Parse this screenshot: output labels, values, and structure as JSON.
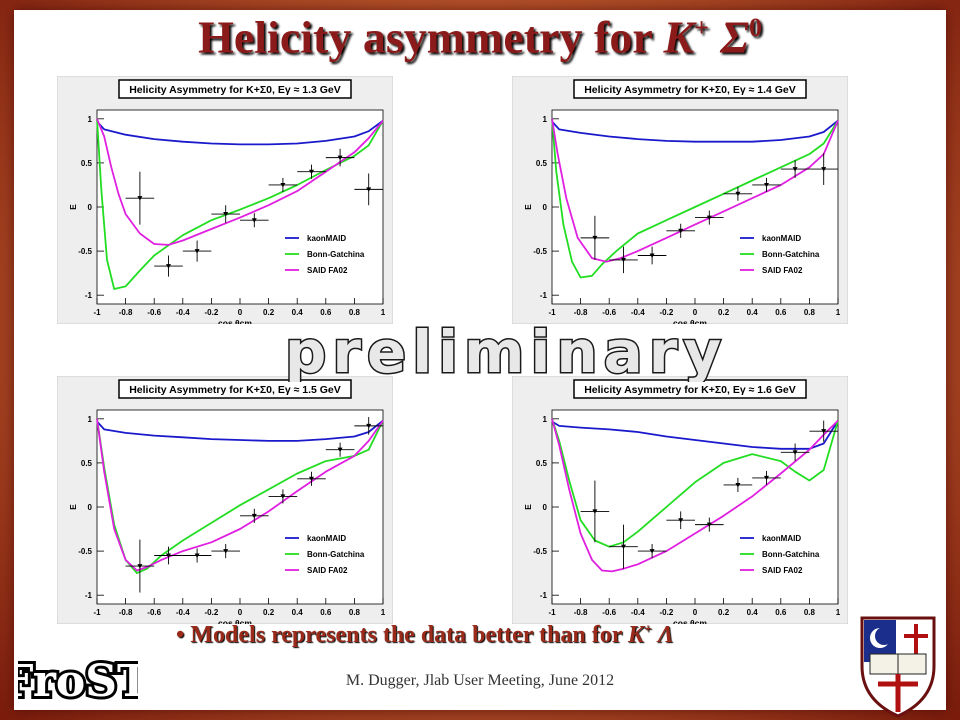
{
  "title": {
    "main": "Helicity asymmetry for ",
    "particle_k": "K",
    "k_sup": "+",
    "particle_s": "Σ",
    "s_sup": "0"
  },
  "watermark": "preliminary",
  "bullet": {
    "text": "• Models represents the data better than for ",
    "particle": "K",
    "sup": "+",
    "lambda": " Λ"
  },
  "footer": "M. Dugger, Jlab User Meeting, June 2012",
  "logo_text": "FroST",
  "colors": {
    "kaonMAID": "#1a1acc",
    "bonn": "#22dd22",
    "said": "#e020e0",
    "data": "#000000",
    "title_red": "#8b1a1a"
  },
  "chart_data": [
    {
      "type": "line",
      "title": "Helicity Asymmetry for K+Σ0, Eγ ≈ 1.3 GeV",
      "xlabel": "cos θcm",
      "ylabel": "E",
      "xlim": [
        -1,
        1
      ],
      "ylim": [
        -1.1,
        1.1
      ],
      "legend": [
        "kaonMAID",
        "Bonn-Gatchina",
        "SAID FA02"
      ],
      "legend_position": "bottom-right",
      "xticks": [
        "-1",
        "-0.8",
        "-0.6",
        "-0.4",
        "-0.2",
        "0",
        "0.2",
        "0.4",
        "0.6",
        "0.8",
        "1"
      ],
      "yticks": [
        "-1",
        "-0.5",
        "0",
        "0.5",
        "1"
      ],
      "series": [
        {
          "name": "kaonMAID",
          "x": [
            -1,
            -0.95,
            -0.8,
            -0.6,
            -0.4,
            -0.2,
            0,
            0.2,
            0.4,
            0.6,
            0.8,
            0.9,
            1
          ],
          "y": [
            0.97,
            0.88,
            0.82,
            0.77,
            0.74,
            0.72,
            0.71,
            0.71,
            0.72,
            0.75,
            0.8,
            0.86,
            0.98
          ]
        },
        {
          "name": "Bonn-Gatchina",
          "x": [
            -1,
            -0.97,
            -0.93,
            -0.88,
            -0.8,
            -0.7,
            -0.6,
            -0.4,
            -0.2,
            0,
            0.2,
            0.4,
            0.6,
            0.8,
            0.9,
            1
          ],
          "y": [
            1,
            0.2,
            -0.6,
            -0.93,
            -0.9,
            -0.72,
            -0.55,
            -0.32,
            -0.15,
            -0.03,
            0.1,
            0.25,
            0.42,
            0.58,
            0.7,
            0.98
          ]
        },
        {
          "name": "SAID FA02",
          "x": [
            -1,
            -0.95,
            -0.9,
            -0.85,
            -0.8,
            -0.7,
            -0.6,
            -0.5,
            -0.4,
            -0.2,
            0,
            0.2,
            0.4,
            0.6,
            0.8,
            0.9,
            1
          ],
          "y": [
            1,
            0.8,
            0.45,
            0.15,
            -0.08,
            -0.3,
            -0.42,
            -0.43,
            -0.38,
            -0.25,
            -0.12,
            0.02,
            0.18,
            0.4,
            0.62,
            0.78,
            0.98
          ]
        }
      ],
      "points": [
        {
          "x": -0.7,
          "y": 0.1,
          "ey": 0.3,
          "ex": 0.1
        },
        {
          "x": -0.5,
          "y": -0.67,
          "ey": 0.12,
          "ex": 0.1
        },
        {
          "x": -0.3,
          "y": -0.5,
          "ey": 0.12,
          "ex": 0.1
        },
        {
          "x": -0.1,
          "y": -0.08,
          "ey": 0.1,
          "ex": 0.1
        },
        {
          "x": 0.1,
          "y": -0.15,
          "ey": 0.08,
          "ex": 0.1
        },
        {
          "x": 0.3,
          "y": 0.25,
          "ey": 0.08,
          "ex": 0.1
        },
        {
          "x": 0.5,
          "y": 0.4,
          "ey": 0.08,
          "ex": 0.1
        },
        {
          "x": 0.7,
          "y": 0.56,
          "ey": 0.1,
          "ex": 0.1
        },
        {
          "x": 0.9,
          "y": 0.2,
          "ey": 0.18,
          "ex": 0.1
        }
      ]
    },
    {
      "type": "line",
      "title": "Helicity Asymmetry for K+Σ0, Eγ ≈ 1.4 GeV",
      "xlabel": "cos θcm",
      "ylabel": "E",
      "xlim": [
        -1,
        1
      ],
      "ylim": [
        -1.1,
        1.1
      ],
      "legend": [
        "kaonMAID",
        "Bonn-Gatchina",
        "SAID FA02"
      ],
      "legend_position": "bottom-right",
      "xticks": [
        "-1",
        "-0.8",
        "-0.6",
        "-0.4",
        "-0.2",
        "0",
        "0.2",
        "0.4",
        "0.6",
        "0.8",
        "1"
      ],
      "yticks": [
        "-1",
        "-0.5",
        "0",
        "0.5",
        "1"
      ],
      "series": [
        {
          "name": "kaonMAID",
          "x": [
            -1,
            -0.95,
            -0.8,
            -0.6,
            -0.4,
            -0.2,
            0,
            0.2,
            0.4,
            0.6,
            0.8,
            0.9,
            1
          ],
          "y": [
            0.97,
            0.88,
            0.84,
            0.8,
            0.77,
            0.75,
            0.74,
            0.74,
            0.74,
            0.76,
            0.8,
            0.85,
            0.98
          ]
        },
        {
          "name": "Bonn-Gatchina",
          "x": [
            -1,
            -0.97,
            -0.92,
            -0.86,
            -0.8,
            -0.72,
            -0.65,
            -0.55,
            -0.4,
            -0.2,
            0,
            0.2,
            0.4,
            0.6,
            0.8,
            0.9,
            1
          ],
          "y": [
            1,
            0.4,
            -0.2,
            -0.62,
            -0.8,
            -0.78,
            -0.65,
            -0.5,
            -0.3,
            -0.15,
            0,
            0.15,
            0.3,
            0.45,
            0.6,
            0.72,
            0.98
          ]
        },
        {
          "name": "SAID FA02",
          "x": [
            -1,
            -0.96,
            -0.9,
            -0.82,
            -0.72,
            -0.62,
            -0.52,
            -0.4,
            -0.2,
            0,
            0.2,
            0.4,
            0.6,
            0.8,
            0.9,
            1
          ],
          "y": [
            1,
            0.6,
            0.1,
            -0.35,
            -0.58,
            -0.62,
            -0.58,
            -0.5,
            -0.35,
            -0.2,
            -0.05,
            0.1,
            0.25,
            0.45,
            0.6,
            0.98
          ]
        }
      ],
      "points": [
        {
          "x": -0.7,
          "y": -0.35,
          "ey": 0.25,
          "ex": 0.1
        },
        {
          "x": -0.5,
          "y": -0.6,
          "ey": 0.15,
          "ex": 0.1
        },
        {
          "x": -0.3,
          "y": -0.55,
          "ey": 0.1,
          "ex": 0.1
        },
        {
          "x": -0.1,
          "y": -0.27,
          "ey": 0.08,
          "ex": 0.1
        },
        {
          "x": 0.1,
          "y": -0.12,
          "ey": 0.08,
          "ex": 0.1
        },
        {
          "x": 0.3,
          "y": 0.15,
          "ey": 0.08,
          "ex": 0.1
        },
        {
          "x": 0.5,
          "y": 0.25,
          "ey": 0.08,
          "ex": 0.1
        },
        {
          "x": 0.7,
          "y": 0.43,
          "ey": 0.1,
          "ex": 0.1
        },
        {
          "x": 0.9,
          "y": 0.43,
          "ey": 0.18,
          "ex": 0.1
        }
      ]
    },
    {
      "type": "line",
      "title": "Helicity Asymmetry for K+Σ0, Eγ ≈ 1.5 GeV",
      "xlabel": "cos θcm",
      "ylabel": "E",
      "xlim": [
        -1,
        1
      ],
      "ylim": [
        -1.1,
        1.1
      ],
      "legend": [
        "kaonMAID",
        "Bonn-Gatchina",
        "SAID FA02"
      ],
      "legend_position": "bottom-right",
      "xticks": [
        "-1",
        "-0.8",
        "-0.6",
        "-0.4",
        "-0.2",
        "0",
        "0.2",
        "0.4",
        "0.6",
        "0.8",
        "1"
      ],
      "yticks": [
        "-1",
        "-0.5",
        "0",
        "0.5",
        "1"
      ],
      "series": [
        {
          "name": "kaonMAID",
          "x": [
            -1,
            -0.95,
            -0.8,
            -0.6,
            -0.4,
            -0.2,
            0,
            0.2,
            0.4,
            0.6,
            0.8,
            0.9,
            1
          ],
          "y": [
            0.97,
            0.88,
            0.84,
            0.81,
            0.79,
            0.77,
            0.76,
            0.75,
            0.75,
            0.77,
            0.8,
            0.85,
            0.98
          ]
        },
        {
          "name": "Bonn-Gatchina",
          "x": [
            -1,
            -0.95,
            -0.88,
            -0.8,
            -0.72,
            -0.65,
            -0.55,
            -0.4,
            -0.2,
            0,
            0.2,
            0.4,
            0.6,
            0.8,
            0.9,
            1
          ],
          "y": [
            1,
            0.45,
            -0.2,
            -0.6,
            -0.75,
            -0.7,
            -0.55,
            -0.38,
            -0.18,
            0.02,
            0.2,
            0.38,
            0.52,
            0.58,
            0.65,
            0.98
          ]
        },
        {
          "name": "SAID FA02",
          "x": [
            -1,
            -0.95,
            -0.88,
            -0.8,
            -0.72,
            -0.65,
            -0.55,
            -0.4,
            -0.2,
            0,
            0.2,
            0.4,
            0.6,
            0.8,
            0.9,
            1
          ],
          "y": [
            1,
            0.4,
            -0.25,
            -0.6,
            -0.72,
            -0.68,
            -0.6,
            -0.5,
            -0.4,
            -0.25,
            -0.05,
            0.18,
            0.4,
            0.58,
            0.75,
            0.98
          ]
        }
      ],
      "points": [
        {
          "x": -0.7,
          "y": -0.67,
          "ey": 0.3,
          "ex": 0.1
        },
        {
          "x": -0.5,
          "y": -0.55,
          "ey": 0.1,
          "ex": 0.1
        },
        {
          "x": -0.3,
          "y": -0.55,
          "ey": 0.08,
          "ex": 0.1
        },
        {
          "x": -0.1,
          "y": -0.5,
          "ey": 0.08,
          "ex": 0.1
        },
        {
          "x": 0.1,
          "y": -0.1,
          "ey": 0.08,
          "ex": 0.1
        },
        {
          "x": 0.3,
          "y": 0.12,
          "ey": 0.08,
          "ex": 0.1
        },
        {
          "x": 0.5,
          "y": 0.32,
          "ey": 0.08,
          "ex": 0.1
        },
        {
          "x": 0.7,
          "y": 0.65,
          "ey": 0.08,
          "ex": 0.1
        },
        {
          "x": 0.9,
          "y": 0.92,
          "ey": 0.1,
          "ex": 0.1
        }
      ]
    },
    {
      "type": "line",
      "title": "Helicity Asymmetry for K+Σ0, Eγ ≈ 1.6 GeV",
      "xlabel": "cos θcm",
      "ylabel": "E",
      "xlim": [
        -1,
        1
      ],
      "ylim": [
        -1.1,
        1.1
      ],
      "legend": [
        "kaonMAID",
        "Bonn-Gatchina",
        "SAID FA02"
      ],
      "legend_position": "bottom-right",
      "xticks": [
        "-1",
        "-0.8",
        "-0.6",
        "-0.4",
        "-0.2",
        "0",
        "0.2",
        "0.4",
        "0.6",
        "0.8",
        "1"
      ],
      "yticks": [
        "-1",
        "-0.5",
        "0",
        "0.5",
        "1"
      ],
      "series": [
        {
          "name": "kaonMAID",
          "x": [
            -1,
            -0.95,
            -0.8,
            -0.6,
            -0.4,
            -0.2,
            0,
            0.2,
            0.4,
            0.6,
            0.8,
            0.9,
            1
          ],
          "y": [
            0.97,
            0.92,
            0.9,
            0.88,
            0.85,
            0.8,
            0.76,
            0.72,
            0.68,
            0.66,
            0.66,
            0.72,
            0.98
          ]
        },
        {
          "name": "Bonn-Gatchina",
          "x": [
            -1,
            -0.95,
            -0.88,
            -0.8,
            -0.7,
            -0.6,
            -0.5,
            -0.4,
            -0.2,
            0,
            0.2,
            0.4,
            0.6,
            0.7,
            0.8,
            0.9,
            1
          ],
          "y": [
            1,
            0.75,
            0.3,
            -0.15,
            -0.38,
            -0.45,
            -0.4,
            -0.28,
            0,
            0.28,
            0.5,
            0.6,
            0.52,
            0.4,
            0.3,
            0.42,
            0.98
          ]
        },
        {
          "name": "SAID FA02",
          "x": [
            -1,
            -0.95,
            -0.88,
            -0.8,
            -0.72,
            -0.65,
            -0.58,
            -0.5,
            -0.4,
            -0.2,
            0,
            0.2,
            0.4,
            0.6,
            0.8,
            0.9,
            1
          ],
          "y": [
            1,
            0.7,
            0.2,
            -0.3,
            -0.6,
            -0.72,
            -0.73,
            -0.7,
            -0.65,
            -0.5,
            -0.3,
            -0.1,
            0.12,
            0.38,
            0.65,
            0.82,
            0.98
          ]
        }
      ],
      "points": [
        {
          "x": -0.7,
          "y": -0.05,
          "ey": 0.35,
          "ex": 0.1
        },
        {
          "x": -0.5,
          "y": -0.45,
          "ey": 0.25,
          "ex": 0.1
        },
        {
          "x": -0.3,
          "y": -0.5,
          "ey": 0.08,
          "ex": 0.1
        },
        {
          "x": -0.1,
          "y": -0.15,
          "ey": 0.1,
          "ex": 0.1
        },
        {
          "x": 0.1,
          "y": -0.2,
          "ey": 0.08,
          "ex": 0.1
        },
        {
          "x": 0.3,
          "y": 0.25,
          "ey": 0.08,
          "ex": 0.1
        },
        {
          "x": 0.5,
          "y": 0.33,
          "ey": 0.08,
          "ex": 0.1
        },
        {
          "x": 0.7,
          "y": 0.62,
          "ey": 0.1,
          "ex": 0.1
        },
        {
          "x": 0.9,
          "y": 0.86,
          "ey": 0.12,
          "ex": 0.1
        }
      ]
    }
  ]
}
